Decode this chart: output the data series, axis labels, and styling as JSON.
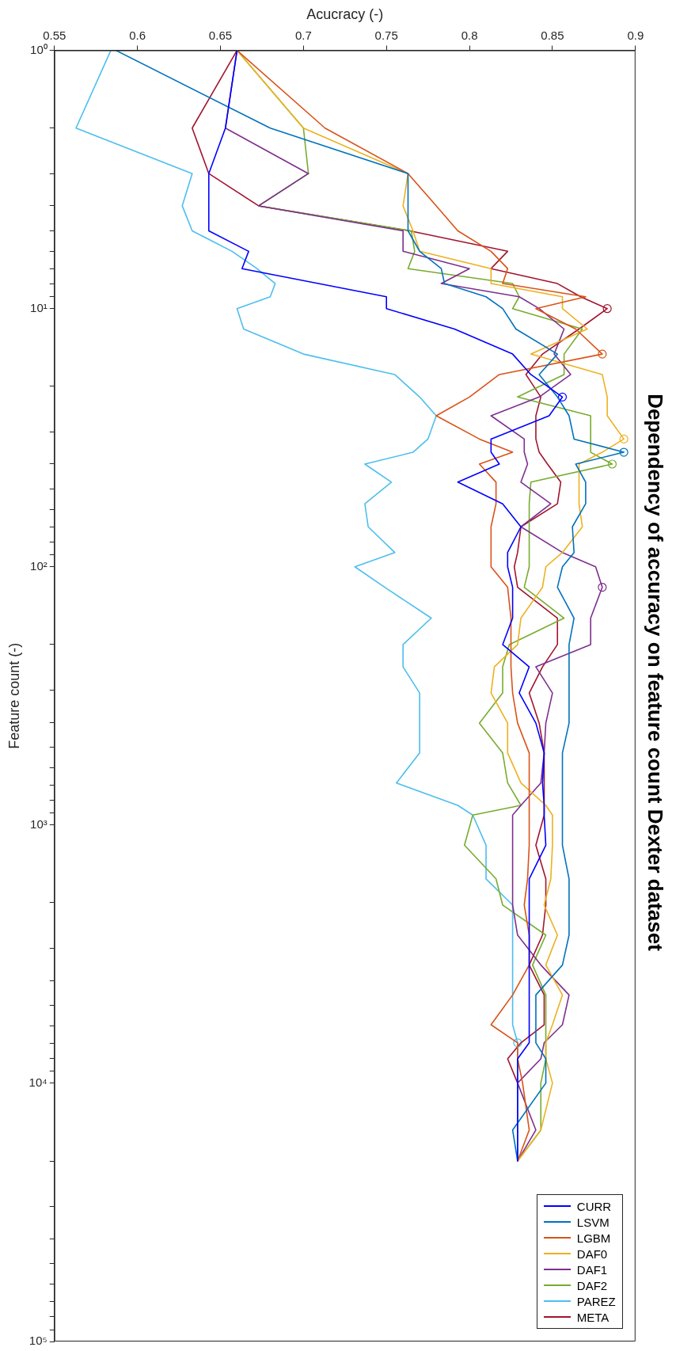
{
  "chart_data": {
    "type": "line",
    "title": "Dependency of accuracy on feature count Dexter dataset",
    "xlabel": "Acucracy (-)",
    "ylabel": "Feature count (-)",
    "log": "y",
    "legend": "bottom right",
    "marker": "none",
    "xlim": [
      0.55,
      0.9
    ],
    "xticks": [
      0.55,
      0.6,
      0.65,
      0.7,
      0.75,
      0.8,
      0.85,
      0.9
    ],
    "ylim": [
      100000,
      1
    ],
    "yticks": [
      {
        "value": 1,
        "label": "10⁰"
      },
      {
        "value": 2,
        "label": null
      },
      {
        "value": 3,
        "label": null
      },
      {
        "value": 4,
        "label": null
      },
      {
        "value": 5,
        "label": null
      },
      {
        "value": 6,
        "label": null
      },
      {
        "value": 7,
        "label": null
      },
      {
        "value": 8,
        "label": null
      },
      {
        "value": 9,
        "label": null
      },
      {
        "value": 10,
        "label": "10¹"
      },
      {
        "value": 20,
        "label": null
      },
      {
        "value": 30,
        "label": null
      },
      {
        "value": 40,
        "label": null
      },
      {
        "value": 50,
        "label": null
      },
      {
        "value": 60,
        "label": null
      },
      {
        "value": 70,
        "label": null
      },
      {
        "value": 80,
        "label": null
      },
      {
        "value": 90,
        "label": null
      },
      {
        "value": 100,
        "label": "10²"
      },
      {
        "value": 200,
        "label": null
      },
      {
        "value": 300,
        "label": null
      },
      {
        "value": 400,
        "label": null
      },
      {
        "value": 500,
        "label": null
      },
      {
        "value": 600,
        "label": null
      },
      {
        "value": 700,
        "label": null
      },
      {
        "value": 800,
        "label": null
      },
      {
        "value": 900,
        "label": null
      },
      {
        "value": 1000,
        "label": "10³"
      },
      {
        "value": 2000,
        "label": null
      },
      {
        "value": 3000,
        "label": null
      },
      {
        "value": 4000,
        "label": null
      },
      {
        "value": 5000,
        "label": null
      },
      {
        "value": 6000,
        "label": null
      },
      {
        "value": 7000,
        "label": null
      },
      {
        "value": 8000,
        "label": null
      },
      {
        "value": 9000,
        "label": null
      },
      {
        "value": 10000,
        "label": "10⁴"
      },
      {
        "value": 20000,
        "label": null
      },
      {
        "value": 30000,
        "label": null
      },
      {
        "value": 40000,
        "label": null
      },
      {
        "value": 50000,
        "label": null
      },
      {
        "value": 60000,
        "label": null
      },
      {
        "value": 70000,
        "label": null
      },
      {
        "value": 80000,
        "label": null
      },
      {
        "value": 90000,
        "label": null
      },
      {
        "value": 100000,
        "label": "10⁵"
      }
    ],
    "series": [
      {
        "name": "CURR",
        "color": "#0000ff",
        "x": [
          0.66,
          0.653,
          0.643,
          0.643,
          0.667,
          0.663,
          0.709,
          0.75,
          0.75,
          0.791,
          0.826,
          0.837,
          0.856,
          0.848,
          0.813,
          0.813,
          0.818,
          0.793,
          0.82,
          0.831,
          0.823,
          0.823,
          0.826,
          0.826,
          0.82,
          0.836,
          0.83,
          0.84,
          0.845,
          0.844,
          0.845,
          0.845,
          0.846,
          0.836,
          0.836,
          0.829,
          0.829
        ],
        "values": [
          1,
          2,
          3,
          5,
          6,
          7,
          8,
          9,
          10,
          12,
          15,
          18,
          22,
          26,
          32,
          36,
          40,
          47,
          57,
          70,
          88,
          100,
          120,
          158,
          200,
          244,
          308,
          403,
          526,
          687,
          839,
          915,
          1197,
          1616,
          6970,
          8040,
          20000
        ]
      },
      {
        "name": "LSVM",
        "color": "#0072bd",
        "x": [
          0.587,
          0.68,
          0.763,
          0.763,
          0.77,
          0.783,
          0.785,
          0.81,
          0.82,
          0.828,
          0.853,
          0.842,
          0.853,
          0.86,
          0.863,
          0.893,
          0.864,
          0.87,
          0.87,
          0.862,
          0.863,
          0.856,
          0.853,
          0.863,
          0.86,
          0.86,
          0.856,
          0.856,
          0.86,
          0.86,
          0.856,
          0.84,
          0.84,
          0.846,
          0.846,
          0.826,
          0.829
        ],
        "values": [
          1,
          2,
          3,
          5,
          6,
          7,
          8,
          9,
          10,
          12,
          15,
          18,
          22,
          26,
          32,
          36,
          40,
          47,
          57,
          70,
          88,
          100,
          120,
          158,
          200,
          403,
          526,
          1197,
          1616,
          2667,
          3484,
          4550,
          6970,
          8040,
          9980,
          15170,
          20000
        ]
      },
      {
        "name": "LGBM",
        "color": "#d95319",
        "x": [
          0.66,
          0.713,
          0.763,
          0.78,
          0.793,
          0.813,
          0.823,
          0.82,
          0.87,
          0.84,
          0.864,
          0.88,
          0.818,
          0.8,
          0.78,
          0.806,
          0.826,
          0.806,
          0.816,
          0.816,
          0.813,
          0.813,
          0.823,
          0.825,
          0.825,
          0.826,
          0.829,
          0.836,
          0.836,
          0.835,
          0.833,
          0.836,
          0.836,
          0.826,
          0.813,
          0.829,
          0.829,
          0.832,
          0.836,
          0.829
        ],
        "values": [
          1,
          2,
          3,
          4,
          5,
          6,
          7,
          8,
          9,
          10,
          12,
          15,
          18,
          22,
          26,
          32,
          36,
          40,
          47,
          57,
          70,
          100,
          120,
          158,
          244,
          308,
          403,
          526,
          1197,
          1616,
          2040,
          2667,
          3484,
          4550,
          5934,
          6970,
          8040,
          9980,
          15170,
          20000
        ]
      },
      {
        "name": "DAF0",
        "color": "#edb120",
        "x": [
          0.66,
          0.7,
          0.763,
          0.76,
          0.766,
          0.77,
          0.813,
          0.813,
          0.856,
          0.856,
          0.871,
          0.837,
          0.88,
          0.883,
          0.883,
          0.893,
          0.88,
          0.866,
          0.866,
          0.868,
          0.856,
          0.846,
          0.844,
          0.831,
          0.829,
          0.815,
          0.813,
          0.823,
          0.823,
          0.831,
          0.846,
          0.85,
          0.85,
          0.849,
          0.845,
          0.853,
          0.846,
          0.856,
          0.85,
          0.846,
          0.846,
          0.85,
          0.843,
          0.829
        ],
        "values": [
          1,
          2,
          3,
          4,
          5,
          6,
          7,
          8,
          9,
          10,
          12,
          15,
          18,
          22,
          26,
          32,
          36,
          40,
          57,
          70,
          88,
          100,
          120,
          158,
          200,
          244,
          308,
          403,
          526,
          687,
          839,
          915,
          1197,
          1616,
          2040,
          2667,
          3484,
          4550,
          5934,
          6970,
          8040,
          9980,
          15170,
          20000
        ]
      },
      {
        "name": "DAF1",
        "color": "#7e2f8e",
        "x": [
          0.66,
          0.653,
          0.703,
          0.673,
          0.76,
          0.76,
          0.8,
          0.783,
          0.83,
          0.842,
          0.857,
          0.851,
          0.861,
          0.842,
          0.813,
          0.833,
          0.833,
          0.835,
          0.831,
          0.849,
          0.831,
          0.856,
          0.876,
          0.88,
          0.873,
          0.873,
          0.84,
          0.85,
          0.846,
          0.845,
          0.843,
          0.831,
          0.826,
          0.826,
          0.829,
          0.843,
          0.86,
          0.856,
          0.845,
          0.843,
          0.829,
          0.84,
          0.829
        ],
        "values": [
          1,
          2,
          3,
          4,
          5,
          6,
          7,
          8,
          9,
          10,
          12,
          15,
          18,
          22,
          26,
          32,
          36,
          40,
          47,
          57,
          70,
          88,
          100,
          120,
          158,
          200,
          244,
          308,
          403,
          526,
          687,
          839,
          915,
          2040,
          2667,
          3484,
          4550,
          5934,
          6970,
          8040,
          9980,
          15170,
          20000
        ]
      },
      {
        "name": "DAF2",
        "color": "#77ac30",
        "x": [
          0.66,
          0.7,
          0.703,
          0.673,
          0.765,
          0.767,
          0.763,
          0.826,
          0.83,
          0.826,
          0.868,
          0.857,
          0.857,
          0.829,
          0.873,
          0.873,
          0.886,
          0.837,
          0.836,
          0.836,
          0.833,
          0.857,
          0.824,
          0.82,
          0.82,
          0.806,
          0.82,
          0.823,
          0.831,
          0.802,
          0.797,
          0.816,
          0.82,
          0.846,
          0.838,
          0.846,
          0.846,
          0.843,
          0.843,
          0.829
        ],
        "values": [
          1,
          2,
          3,
          4,
          5,
          6,
          7,
          8,
          9,
          10,
          12,
          15,
          18,
          22,
          26,
          36,
          40,
          47,
          57,
          100,
          120,
          158,
          200,
          244,
          308,
          403,
          526,
          687,
          839,
          915,
          1197,
          1616,
          2040,
          2667,
          3484,
          4550,
          8040,
          9980,
          15170,
          20000
        ]
      },
      {
        "name": "PAREZ",
        "color": "#4dbeee",
        "x": [
          0.584,
          0.563,
          0.633,
          0.627,
          0.633,
          0.657,
          0.672,
          0.683,
          0.68,
          0.66,
          0.664,
          0.7,
          0.755,
          0.77,
          0.78,
          0.775,
          0.766,
          0.737,
          0.753,
          0.737,
          0.739,
          0.755,
          0.731,
          0.749,
          0.777,
          0.76,
          0.76,
          0.77,
          0.77,
          0.756,
          0.793,
          0.802,
          0.81,
          0.81,
          0.826,
          0.826,
          0.829,
          0.829
        ],
        "values": [
          1,
          2,
          3,
          4,
          5,
          6,
          7,
          8,
          9,
          10,
          12,
          15,
          18,
          22,
          26,
          32,
          36,
          40,
          47,
          57,
          70,
          88,
          100,
          120,
          158,
          200,
          244,
          308,
          526,
          687,
          839,
          915,
          1197,
          1616,
          2040,
          5934,
          6970,
          20000
        ]
      },
      {
        "name": "META",
        "color": "#a2142f",
        "x": [
          0.66,
          0.633,
          0.643,
          0.673,
          0.764,
          0.823,
          0.813,
          0.853,
          0.867,
          0.883,
          0.866,
          0.844,
          0.834,
          0.843,
          0.84,
          0.84,
          0.842,
          0.847,
          0.855,
          0.853,
          0.831,
          0.829,
          0.827,
          0.829,
          0.853,
          0.853,
          0.844,
          0.836,
          0.842,
          0.845,
          0.845,
          0.84,
          0.846,
          0.846,
          0.844,
          0.836,
          0.845,
          0.845,
          0.831,
          0.823,
          0.829,
          0.829
        ],
        "values": [
          1,
          2,
          3,
          4,
          5,
          6,
          7,
          8,
          9,
          10,
          12,
          15,
          18,
          22,
          26,
          32,
          36,
          40,
          47,
          57,
          70,
          88,
          100,
          120,
          158,
          200,
          244,
          308,
          403,
          526,
          915,
          1197,
          1616,
          2040,
          2667,
          3484,
          4550,
          5934,
          6970,
          8040,
          9980,
          20000
        ]
      },
      {
        "type": "scatter",
        "marker": "circle",
        "x": [
          0.856,
          0.893,
          0.88,
          0.893,
          0.88,
          0.886,
          0.829,
          0.883
        ],
        "values": [
          22,
          36,
          15,
          32,
          120,
          40,
          6970,
          10
        ],
        "colors": [
          "#0000ff",
          "#0072bd",
          "#d95319",
          "#edb120",
          "#7e2f8e",
          "#77ac30",
          "#4dbeee",
          "#a2142f"
        ]
      }
    ]
  }
}
